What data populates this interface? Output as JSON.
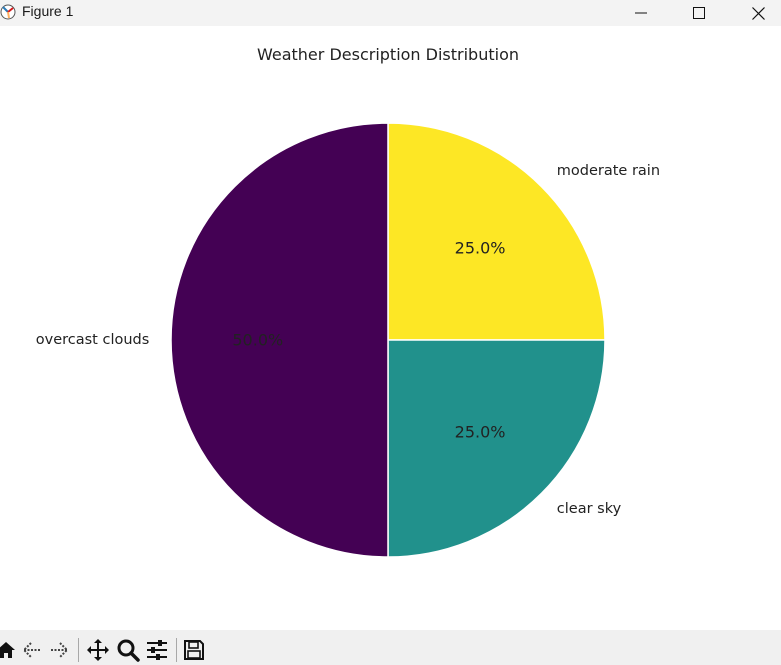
{
  "window": {
    "title": "Figure 1",
    "controls": {
      "minimize": "minimize-icon",
      "maximize": "maximize-icon",
      "close": "close-icon"
    }
  },
  "chart_data": {
    "type": "pie",
    "title": "Weather Description Distribution",
    "slices": [
      {
        "label": "moderate rain",
        "value": 25.0,
        "pct_label": "25.0%",
        "color": "#fde725"
      },
      {
        "label": "clear sky",
        "value": 25.0,
        "pct_label": "25.0%",
        "color": "#21918c"
      },
      {
        "label": "overcast clouds",
        "value": 50.0,
        "pct_label": "50.0%",
        "color": "#440154"
      }
    ],
    "start_angle": 90,
    "direction": "clockwise",
    "colormap": "viridis"
  },
  "toolbar": {
    "tools": [
      "home-icon",
      "back-icon",
      "forward-icon",
      "pan-icon",
      "zoom-icon",
      "configure-icon",
      "save-icon"
    ]
  }
}
